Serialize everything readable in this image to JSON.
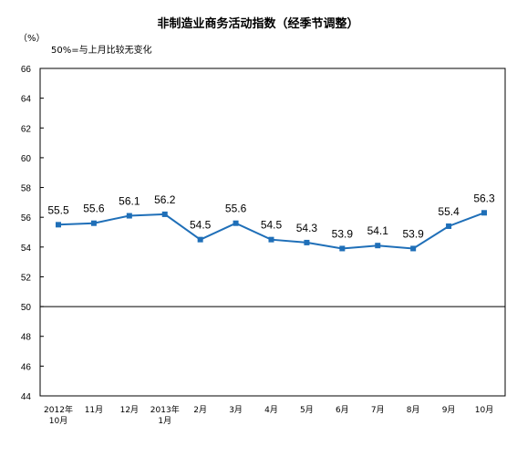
{
  "chart_data": {
    "type": "line",
    "title": "非制造业商务活动指数（经季节调整）",
    "unit": "（%）",
    "note": "50%=与上月比较无变化",
    "categories": [
      [
        "2012年",
        "10月"
      ],
      [
        "11月"
      ],
      [
        "12月"
      ],
      [
        "2013年",
        "1月"
      ],
      [
        "2月"
      ],
      [
        "3月"
      ],
      [
        "4月"
      ],
      [
        "5月"
      ],
      [
        "6月"
      ],
      [
        "7月"
      ],
      [
        "8月"
      ],
      [
        "9月"
      ],
      [
        "10月"
      ]
    ],
    "values": [
      55.5,
      55.6,
      56.1,
      56.2,
      54.5,
      55.6,
      54.5,
      54.3,
      53.9,
      54.1,
      53.9,
      55.4,
      56.3
    ],
    "data_labels": [
      "55.5",
      "55.6",
      "56.1",
      "56.2",
      "54.5",
      "55.6",
      "54.5",
      "54.3",
      "53.9",
      "54.1",
      "53.9",
      "55.4",
      "56.3"
    ],
    "ylim": [
      44,
      66
    ],
    "yticks": [
      44,
      46,
      48,
      50,
      52,
      54,
      56,
      58,
      60,
      62,
      64,
      66
    ],
    "reference_line": 50,
    "grid": false,
    "legend": "none",
    "line_color": "#1f6fb8"
  }
}
